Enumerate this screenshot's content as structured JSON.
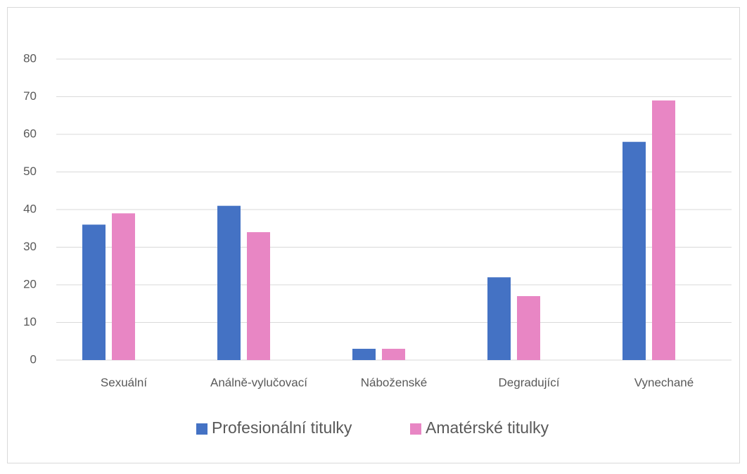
{
  "chart_data": {
    "type": "bar",
    "categories": [
      "Sexuální",
      "Análně-vylučovací",
      "Náboženské",
      "Degradující",
      "Vynechané"
    ],
    "series": [
      {
        "name": "Profesionální titulky",
        "color": "#4472c4",
        "values": [
          36,
          41,
          3,
          22,
          58
        ]
      },
      {
        "name": "Amatérské titulky",
        "color": "#e886c4",
        "values": [
          39,
          34,
          3,
          17,
          69
        ]
      }
    ],
    "ylim": [
      0,
      80
    ],
    "yticks": [
      0,
      10,
      20,
      30,
      40,
      50,
      60,
      70,
      80
    ],
    "grid": true,
    "legend": "bottom"
  }
}
